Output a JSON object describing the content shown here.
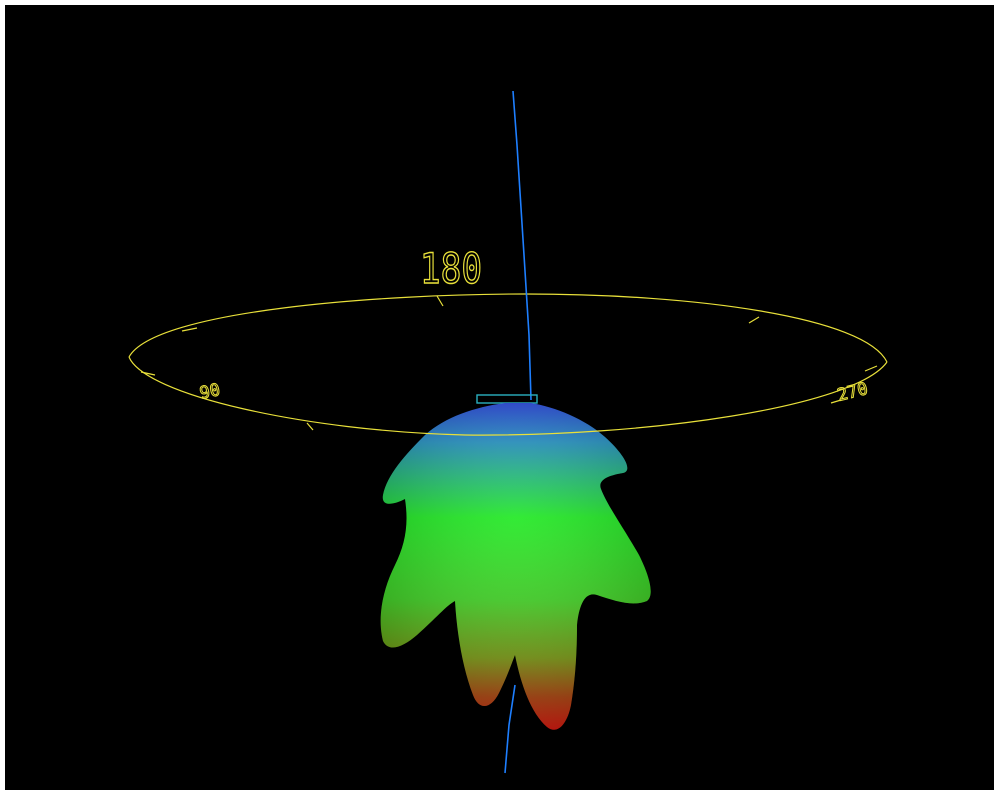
{
  "viewer": {
    "background_color": "#000000",
    "ring_color": "#e8e03a",
    "axis_color": "#1e7fff",
    "pattern_colors": {
      "top": "#1f3fd8",
      "upper": "#1ec84a",
      "middle": "#17e81a",
      "lower": "#7a9a10",
      "bottom": "#e81a10"
    }
  },
  "ring_labels": {
    "top": "180",
    "left": "90",
    "right": "270"
  }
}
